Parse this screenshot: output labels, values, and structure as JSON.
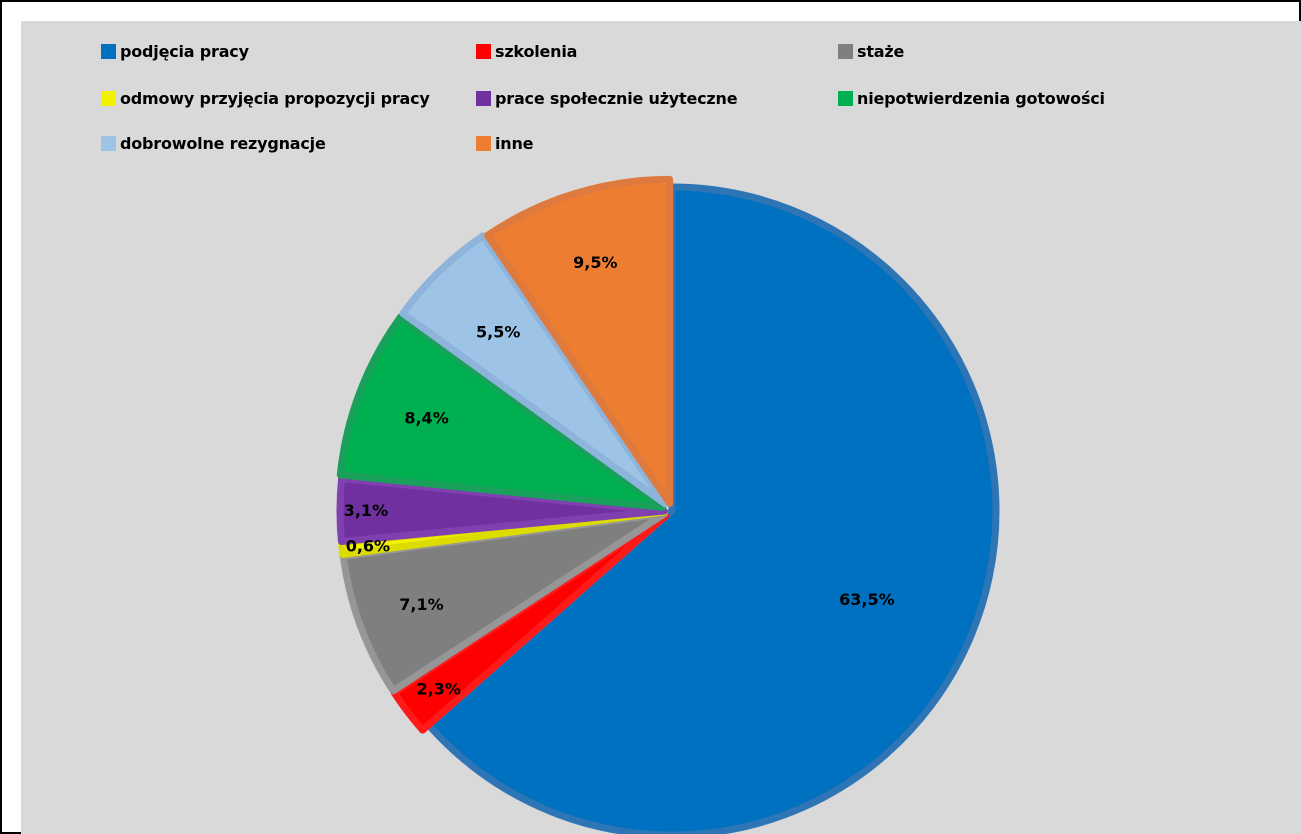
{
  "chart_data": {
    "type": "pie",
    "categories": [
      "podjęcia pracy",
      "szkolenia",
      "staże",
      "odmowy przyjęcia propozycji pracy",
      "prace społecznie użyteczne",
      "niepotwierdzenia gotowości",
      "dobrowolne rezygnacje",
      "inne"
    ],
    "values": [
      63.5,
      2.3,
      7.1,
      0.6,
      3.1,
      8.4,
      5.5,
      9.5
    ],
    "data_labels": [
      "63,5%",
      "2,3%",
      "7,1%",
      "0,6%",
      "3,1%",
      "8,4%",
      "5,5%",
      "9,5%"
    ],
    "colors": [
      "#0070c0",
      "#ff0000",
      "#7f7f7f",
      "#f2f200",
      "#7030a0",
      "#00b050",
      "#9dc3e6",
      "#ed7d31"
    ],
    "edge_colors": [
      "#2e75b6",
      "#ff1a1a",
      "#969696",
      "#dcdc00",
      "#8040b0",
      "#19a05a",
      "#8eb4dc",
      "#de7a3e"
    ],
    "start_angle_deg": 0,
    "direction": "clockwise",
    "title": "",
    "legend_position": "top"
  }
}
